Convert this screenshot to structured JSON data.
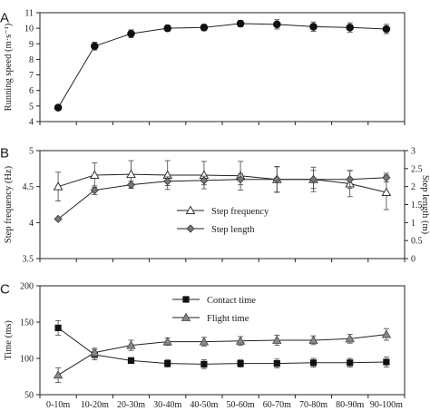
{
  "chart_data": [
    {
      "panel": "A",
      "type": "line",
      "categories": [
        "0-10m",
        "10-20m",
        "20-30m",
        "30-40m",
        "40-50m",
        "50-60m",
        "60-70m",
        "70-80m",
        "80-90m",
        "90-100m"
      ],
      "ylabel": "Running speed (m·s⁻¹)",
      "ylim": [
        4,
        11
      ],
      "yticks": [
        "4",
        "5",
        "6",
        "7",
        "8",
        "9",
        "10",
        "11"
      ],
      "grid": false,
      "series": [
        {
          "marker": "circle-filled",
          "values": [
            4.9,
            8.85,
            9.65,
            10.0,
            10.05,
            10.3,
            10.25,
            10.1,
            10.05,
            9.95
          ],
          "errors": [
            0.0,
            0.25,
            0.25,
            0.2,
            0.2,
            0.2,
            0.3,
            0.3,
            0.3,
            0.3
          ]
        }
      ]
    },
    {
      "panel": "B",
      "type": "line",
      "categories": [
        "0-10m",
        "10-20m",
        "20-30m",
        "30-40m",
        "40-50m",
        "50-60m",
        "60-70m",
        "70-80m",
        "80-90m",
        "90-100m"
      ],
      "ylabel": "Step frequency (Hz)",
      "ylim": [
        3.5,
        5
      ],
      "yticks": [
        "3.5",
        "4",
        "4.5",
        "5"
      ],
      "y2label": "Step length (m)",
      "y2lim": [
        0,
        3
      ],
      "y2ticks": [
        "0",
        "0.5",
        "1",
        "1.5",
        "2",
        "2.5",
        "3"
      ],
      "grid": false,
      "legend_position": "center",
      "series": [
        {
          "name": "Step frequency",
          "axis": "left",
          "marker": "triangle-open",
          "values": [
            4.5,
            4.66,
            4.67,
            4.66,
            4.66,
            4.65,
            4.6,
            4.6,
            4.54,
            4.42
          ],
          "errors": [
            0.2,
            0.17,
            0.19,
            0.2,
            0.19,
            0.2,
            0.18,
            0.17,
            0.18,
            0.24
          ]
        },
        {
          "name": "Step length",
          "axis": "right",
          "marker": "diamond-filled",
          "values": [
            1.1,
            1.9,
            2.05,
            2.15,
            2.17,
            2.2,
            2.2,
            2.2,
            2.2,
            2.25
          ],
          "errors": [
            0.0,
            0.12,
            0.1,
            0.12,
            0.12,
            0.15,
            0.35,
            0.25,
            0.25,
            0.12
          ]
        }
      ]
    },
    {
      "panel": "C",
      "type": "line",
      "categories": [
        "0-10m",
        "10-20m",
        "20-30m",
        "30-40m",
        "40-50m",
        "50-60m",
        "60-70m",
        "70-80m",
        "80-90m",
        "90-100m"
      ],
      "ylabel": "Time (ms)",
      "ylim": [
        50,
        200
      ],
      "yticks": [
        "50",
        "100",
        "150",
        "200"
      ],
      "grid": false,
      "legend_position": "center",
      "series": [
        {
          "name": "Contact time",
          "marker": "square-filled",
          "values": [
            142,
            105,
            97,
            93,
            92,
            93,
            93,
            94,
            94,
            95
          ],
          "errors": [
            10,
            7,
            4,
            5,
            6,
            5,
            6,
            6,
            6,
            7
          ]
        },
        {
          "name": "Flight time",
          "marker": "triangle-filled",
          "values": [
            77,
            108,
            118,
            123,
            123,
            124,
            125,
            125,
            127,
            133
          ],
          "errors": [
            10,
            6,
            7,
            5,
            6,
            6,
            7,
            6,
            6,
            8
          ]
        }
      ]
    }
  ]
}
